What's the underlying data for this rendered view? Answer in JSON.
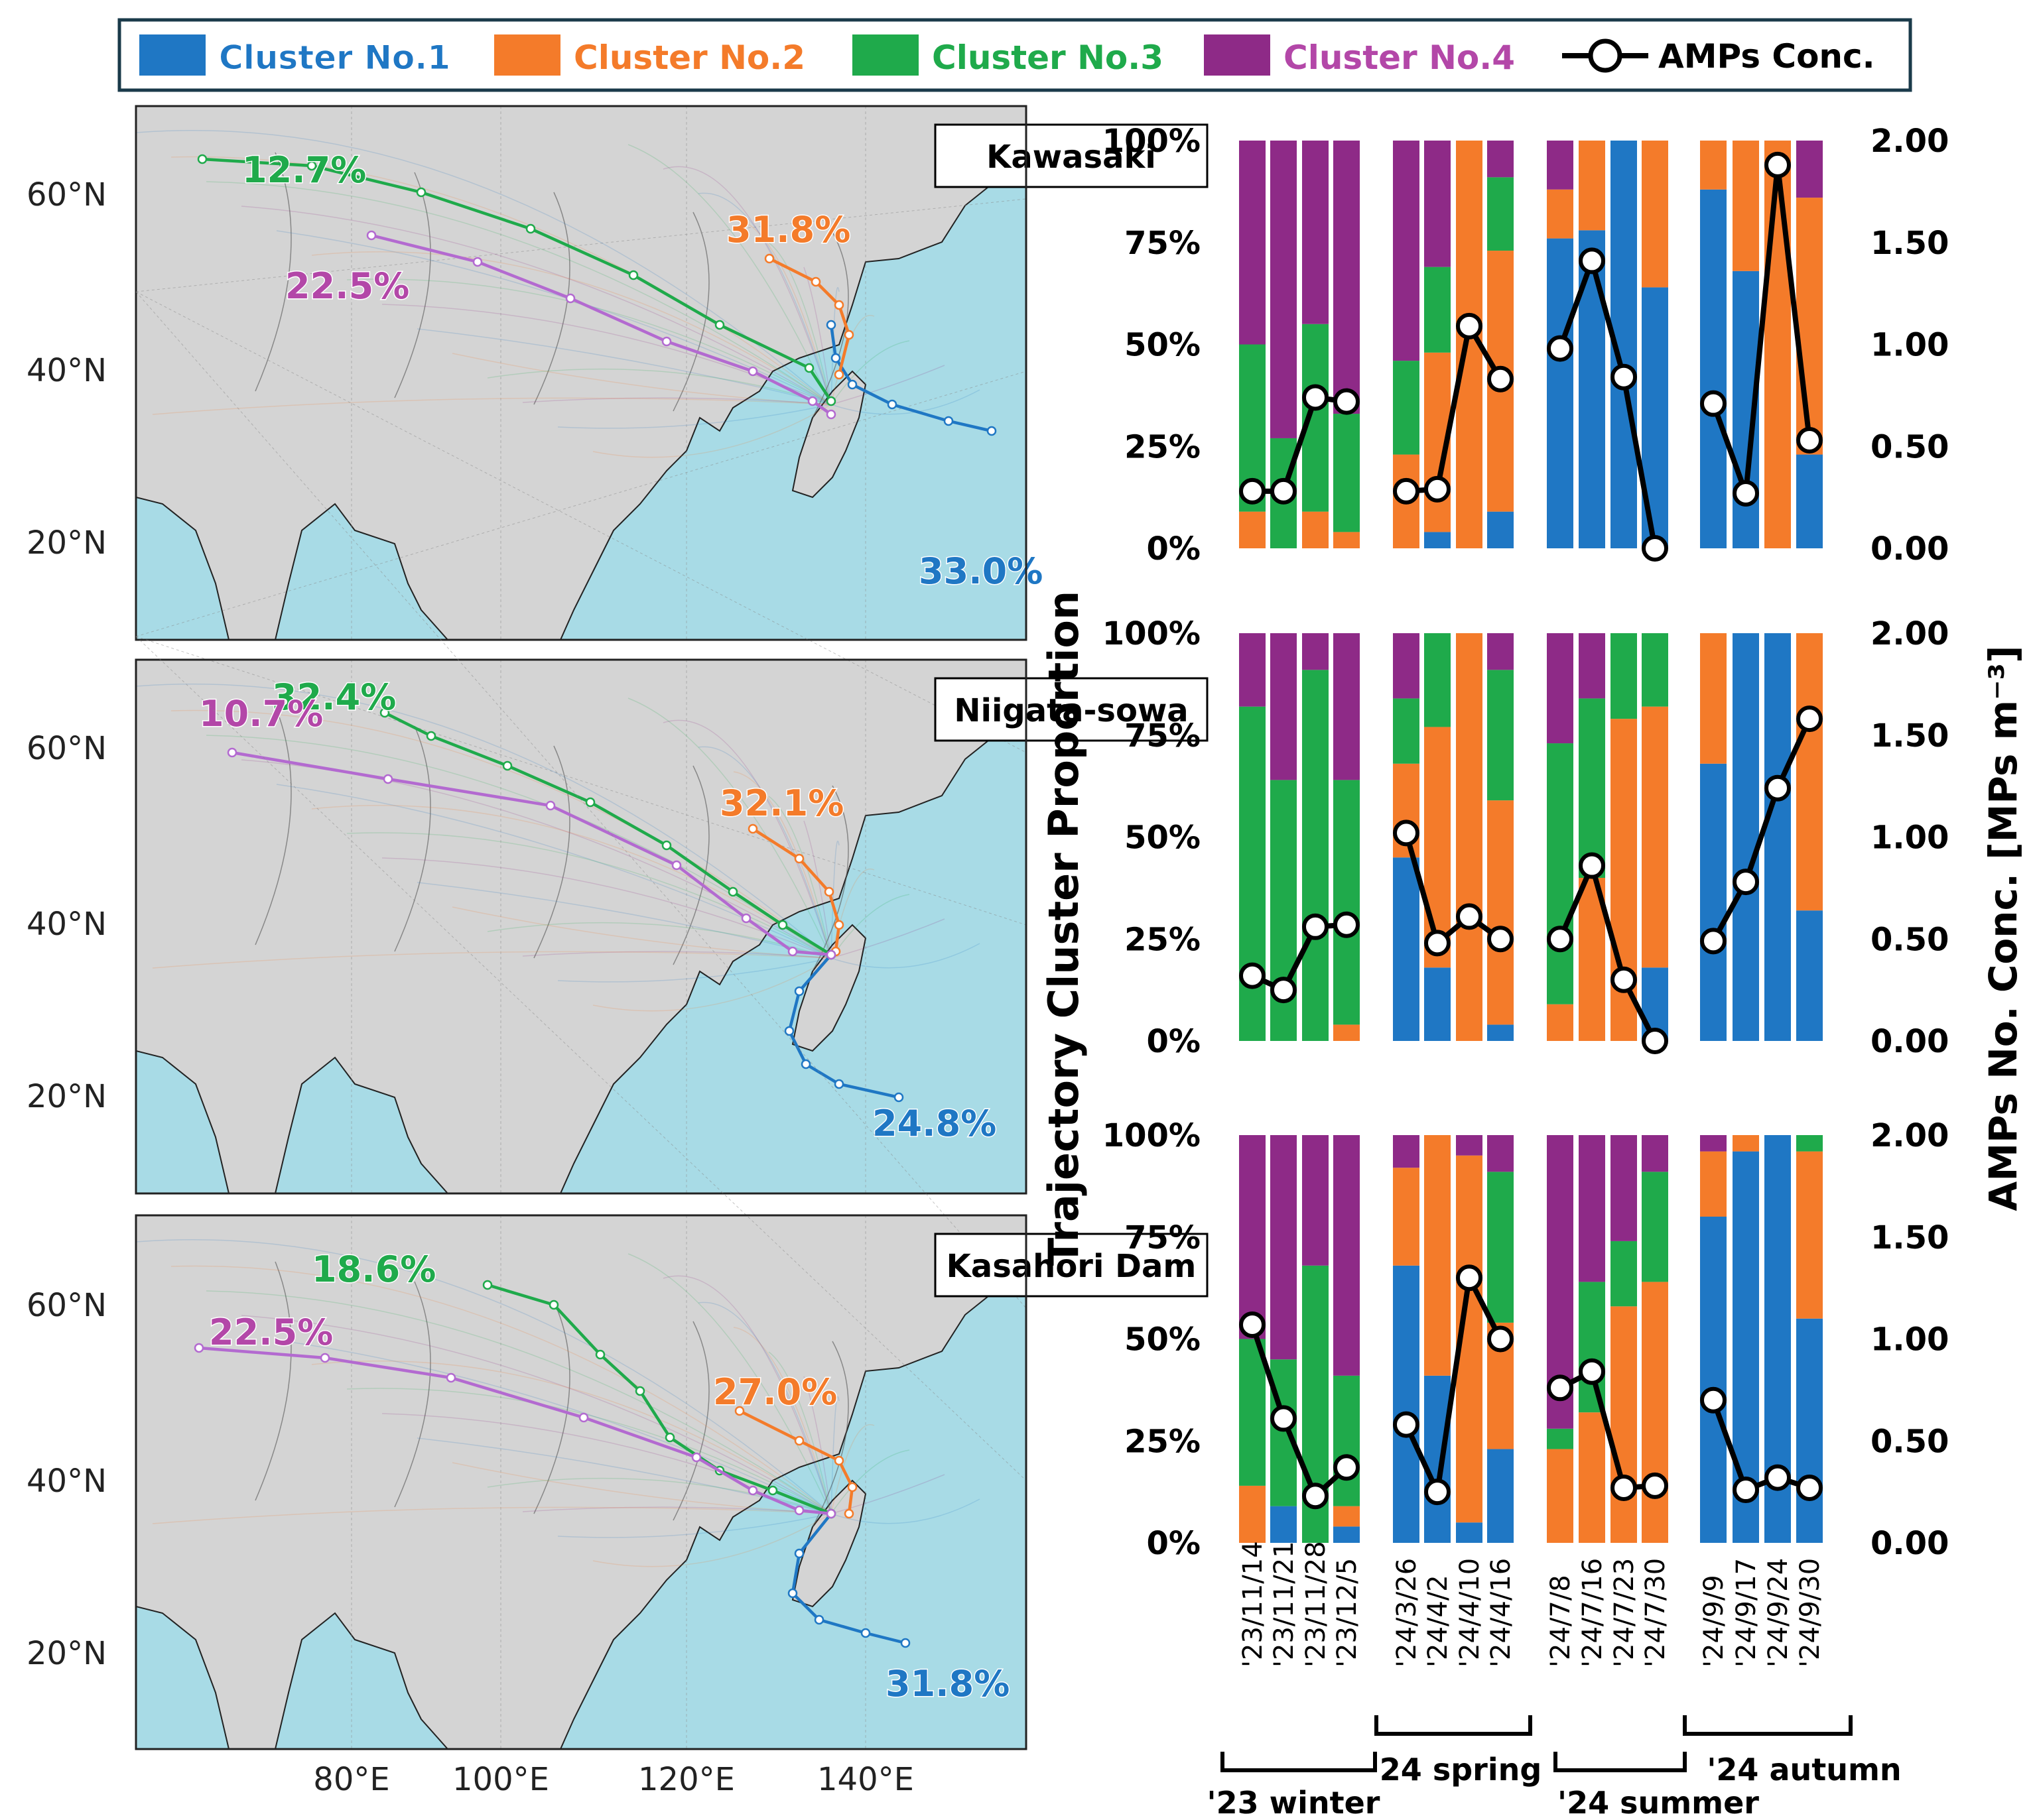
{
  "legend": {
    "items": [
      {
        "label": "Cluster No.1",
        "color": "#1f77c4"
      },
      {
        "label": "Cluster No.2",
        "color": "#f47b2a"
      },
      {
        "label": "Cluster No.3",
        "color": "#1faa4b"
      },
      {
        "label": "Cluster No.4",
        "color": "#8e2a87"
      }
    ],
    "line_label": "AMPs Conc."
  },
  "maps": {
    "lat_labels": [
      "60°N",
      "40°N",
      "20°N"
    ],
    "lon_labels": [
      "80°E",
      "100°E",
      "120°E",
      "140°E"
    ],
    "ocean_color": "#a8dbe6",
    "land_color": "#d4d4d4",
    "panels": [
      {
        "site": "Kawasaki",
        "pct": {
          "c1": "33.0%",
          "c2": "31.8%",
          "c3": "12.7%",
          "c4": "22.5%"
        }
      },
      {
        "site": "Niigata-sowa",
        "pct": {
          "c1": "24.8%",
          "c2": "32.1%",
          "c3": "32.4%",
          "c4": "10.7%"
        }
      },
      {
        "site": "Kasahori Dam",
        "pct": {
          "c1": "31.8%",
          "c2": "27.0%",
          "c3": "18.6%",
          "c4": "22.5%"
        }
      }
    ]
  },
  "axes": {
    "left_title": "Trajectory Cluster Proportion",
    "right_title": "AMPs No. Conc. [MPs m⁻³]",
    "left_ticks": [
      "100%",
      "75%",
      "50%",
      "25%",
      "0%"
    ],
    "right_ticks": [
      "2.00",
      "1.50",
      "1.00",
      "0.50",
      "0.00"
    ],
    "dates": [
      "'23/11/14",
      "'23/11/21",
      "'23/11/28",
      "'23/12/5",
      "'24/3/26",
      "'24/4/2",
      "'24/4/10",
      "'24/4/16",
      "'24/7/8",
      "'24/7/16",
      "'24/7/23",
      "'24/7/30",
      "'24/9/9",
      "'24/9/17",
      "'24/9/24",
      "'24/9/30"
    ],
    "seasons": [
      "'23 winter",
      "'24 spring",
      "'24 summer",
      "'24 autumn"
    ]
  },
  "chart_data": [
    {
      "type": "bar",
      "site": "Kawasaki",
      "stacked": true,
      "categories": [
        "'23/11/14",
        "'23/11/21",
        "'23/11/28",
        "'23/12/5",
        "'24/3/26",
        "'24/4/2",
        "'24/4/10",
        "'24/4/16",
        "'24/7/8",
        "'24/7/16",
        "'24/7/23",
        "'24/7/30",
        "'24/9/9",
        "'24/9/17",
        "'24/9/24",
        "'24/9/30"
      ],
      "series": [
        {
          "name": "Cluster No.1",
          "values": [
            0,
            0,
            0,
            0,
            0,
            4,
            0,
            9,
            76,
            78,
            100,
            64,
            88,
            68,
            0,
            23
          ]
        },
        {
          "name": "Cluster No.2",
          "values": [
            9,
            0,
            9,
            4,
            23,
            44,
            100,
            64,
            12,
            22,
            0,
            36,
            12,
            32,
            100,
            63
          ]
        },
        {
          "name": "Cluster No.3",
          "values": [
            41,
            27,
            46,
            29,
            23,
            21,
            0,
            18,
            0,
            0,
            0,
            0,
            0,
            0,
            0,
            0
          ]
        },
        {
          "name": "Cluster No.4",
          "values": [
            50,
            73,
            45,
            67,
            54,
            31,
            0,
            9,
            12,
            0,
            0,
            0,
            0,
            0,
            0,
            14
          ]
        },
        {
          "name": "AMPs Conc.",
          "axis": "right",
          "values": [
            0.28,
            0.28,
            0.74,
            0.72,
            0.28,
            0.29,
            1.09,
            0.83,
            0.98,
            1.41,
            0.84,
            0.0,
            0.71,
            0.27,
            1.88,
            0.53
          ]
        }
      ],
      "ylim": [
        0,
        100
      ],
      "y2lim": [
        0,
        2
      ]
    },
    {
      "type": "bar",
      "site": "Niigata-sowa",
      "stacked": true,
      "categories": [
        "'23/11/14",
        "'23/11/21",
        "'23/11/28",
        "'23/12/5",
        "'24/3/26",
        "'24/4/2",
        "'24/4/10",
        "'24/4/16",
        "'24/7/8",
        "'24/7/16",
        "'24/7/23",
        "'24/7/30",
        "'24/9/9",
        "'24/9/17",
        "'24/9/24",
        "'24/9/30"
      ],
      "series": [
        {
          "name": "Cluster No.1",
          "values": [
            0,
            0,
            0,
            0,
            45,
            18,
            0,
            4,
            0,
            0,
            0,
            18,
            68,
            100,
            100,
            32
          ]
        },
        {
          "name": "Cluster No.2",
          "values": [
            0,
            0,
            0,
            4,
            23,
            59,
            100,
            55,
            9,
            40,
            79,
            64,
            32,
            0,
            0,
            68
          ]
        },
        {
          "name": "Cluster No.3",
          "values": [
            82,
            64,
            91,
            60,
            16,
            23,
            0,
            32,
            64,
            44,
            21,
            18,
            0,
            0,
            0,
            0
          ]
        },
        {
          "name": "Cluster No.4",
          "values": [
            18,
            36,
            9,
            36,
            16,
            0,
            0,
            9,
            27,
            16,
            0,
            0,
            0,
            0,
            0,
            0
          ]
        },
        {
          "name": "AMPs Conc.",
          "axis": "right",
          "values": [
            0.32,
            0.25,
            0.56,
            0.57,
            1.02,
            0.48,
            0.61,
            0.5,
            0.5,
            0.86,
            0.3,
            0.0,
            0.49,
            0.78,
            1.24,
            1.58
          ]
        }
      ],
      "ylim": [
        0,
        100
      ],
      "y2lim": [
        0,
        2
      ]
    },
    {
      "type": "bar",
      "site": "Kasahori Dam",
      "stacked": true,
      "categories": [
        "'23/11/14",
        "'23/11/21",
        "'23/11/28",
        "'23/12/5",
        "'24/3/26",
        "'24/4/2",
        "'24/4/10",
        "'24/4/16",
        "'24/7/8",
        "'24/7/16",
        "'24/7/23",
        "'24/7/30",
        "'24/9/9",
        "'24/9/17",
        "'24/9/24",
        "'24/9/30"
      ],
      "series": [
        {
          "name": "Cluster No.1",
          "values": [
            0,
            9,
            0,
            4,
            68,
            41,
            5,
            23,
            0,
            0,
            0,
            0,
            80,
            96,
            100,
            55
          ]
        },
        {
          "name": "Cluster No.2",
          "values": [
            14,
            0,
            0,
            5,
            24,
            59,
            90,
            31,
            23,
            32,
            58,
            64,
            16,
            4,
            0,
            41
          ]
        },
        {
          "name": "Cluster No.3",
          "values": [
            36,
            36,
            68,
            32,
            0,
            0,
            0,
            37,
            5,
            32,
            16,
            27,
            0,
            0,
            0,
            4
          ]
        },
        {
          "name": "Cluster No.4",
          "values": [
            50,
            55,
            32,
            59,
            8,
            0,
            5,
            9,
            72,
            36,
            26,
            9,
            4,
            0,
            0,
            0
          ]
        },
        {
          "name": "AMPs Conc.",
          "axis": "right",
          "values": [
            1.07,
            0.61,
            0.23,
            0.37,
            0.58,
            0.25,
            1.3,
            1.0,
            0.76,
            0.84,
            0.27,
            0.28,
            0.7,
            0.26,
            0.32,
            0.27
          ]
        }
      ],
      "ylim": [
        0,
        100
      ],
      "y2lim": [
        0,
        2
      ]
    }
  ]
}
